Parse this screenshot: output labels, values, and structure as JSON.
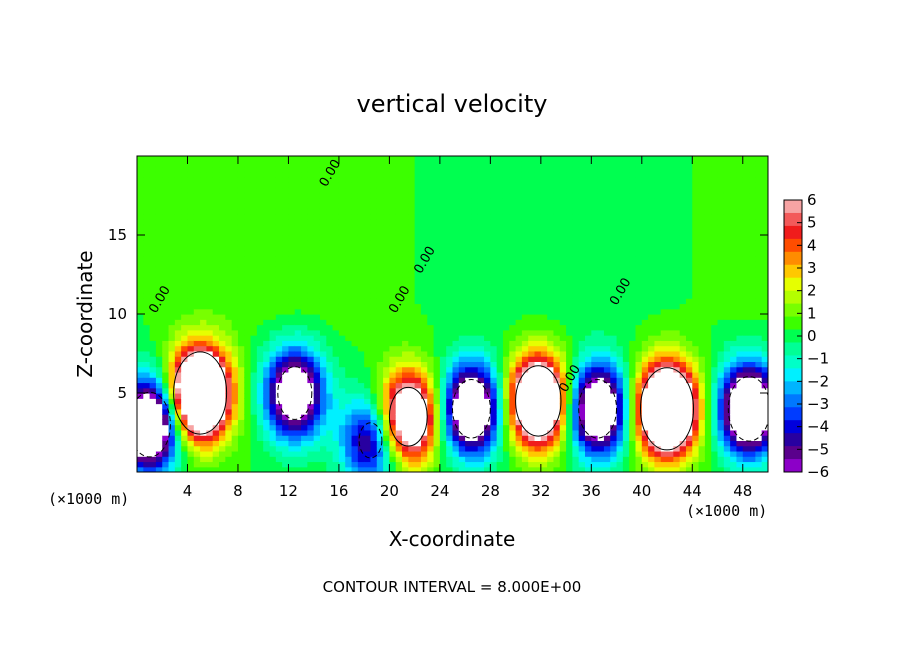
{
  "chart_data": {
    "type": "heatmap",
    "title": "vertical velocity",
    "xlabel": "X-coordinate",
    "ylabel": "Z-coordinate",
    "x_unit_left": "(×1000 m)",
    "x_unit_right": "(×1000 m)",
    "footer": "CONTOUR INTERVAL = 8.000E+00",
    "xlim": [
      0,
      50
    ],
    "ylim": [
      0,
      20
    ],
    "xticks": [
      4,
      8,
      12,
      16,
      20,
      24,
      28,
      32,
      36,
      40,
      44,
      48
    ],
    "yticks": [
      5,
      10,
      15
    ],
    "colorbar": {
      "ticks": [
        6,
        5,
        4,
        3,
        2,
        1,
        0,
        -1,
        -2,
        -3,
        -4,
        -5,
        -6
      ],
      "labels": [
        "6",
        "5",
        "4",
        "3",
        "2",
        "1",
        "0",
        "−1",
        "−2",
        "−3",
        "−4",
        "−5",
        "−6"
      ],
      "colors": [
        "#f7a3a3",
        "#f35a5a",
        "#f01c1c",
        "#ff4d00",
        "#ff8c00",
        "#ffc800",
        "#e6ff00",
        "#b4ff00",
        "#78ff00",
        "#3cff00",
        "#00ff50",
        "#00ff96",
        "#00ffc8",
        "#00f0ff",
        "#00b4ff",
        "#0078ff",
        "#003cff",
        "#0000dc",
        "#2800a0",
        "#5a008c",
        "#8c00c8"
      ],
      "range": [
        -6,
        6
      ]
    },
    "contour_interval": 8.0,
    "contour_labels": [
      "0.00",
      "0.00",
      "0.00",
      "0.00",
      "0.00",
      "0.00"
    ],
    "features": [
      {
        "x": 1.0,
        "z": 3.0,
        "sign": "down",
        "amp": 11
      },
      {
        "x": 5.0,
        "z": 5.0,
        "sign": "up",
        "amp": 14
      },
      {
        "x": 12.5,
        "z": 5.0,
        "sign": "down",
        "amp": 9
      },
      {
        "x": 18.5,
        "z": 2.0,
        "sign": "down",
        "amp": 6
      },
      {
        "x": 21.5,
        "z": 3.5,
        "sign": "up",
        "amp": 10
      },
      {
        "x": 26.5,
        "z": 4.0,
        "sign": "down",
        "amp": 10
      },
      {
        "x": 31.8,
        "z": 4.5,
        "sign": "up",
        "amp": 12
      },
      {
        "x": 36.5,
        "z": 4.0,
        "sign": "down",
        "amp": 10
      },
      {
        "x": 42.0,
        "z": 4.0,
        "sign": "up",
        "amp": 14
      },
      {
        "x": 48.5,
        "z": 4.0,
        "sign": "down",
        "amp": 11
      }
    ]
  }
}
